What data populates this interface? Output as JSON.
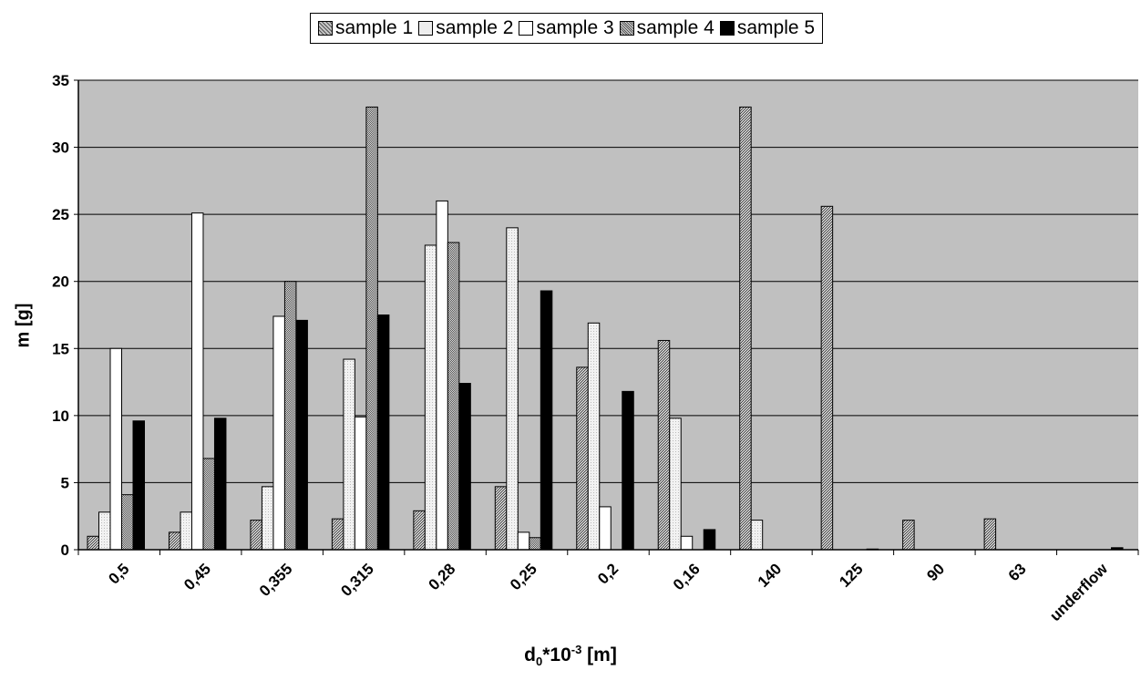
{
  "chart_data": {
    "type": "bar",
    "title": "",
    "xlabel_main": "d",
    "xlabel_sub": "0",
    "xlabel_mid": "*10",
    "xlabel_sup": "-3",
    "xlabel_end": " [m]",
    "ylabel": "m [g]",
    "ylim": [
      0,
      35
    ],
    "yticks": [
      0,
      5,
      10,
      15,
      20,
      25,
      30,
      35
    ],
    "grid": true,
    "legend_position": "top-center",
    "categories": [
      "0,5",
      "0,45",
      "0,355",
      "0,315",
      "0,28",
      "0,25",
      "0,2",
      "0,16",
      "140",
      "125",
      "90",
      "63",
      "underflow"
    ],
    "series": [
      {
        "name": "sample 1",
        "fill": "#888888",
        "values": [
          1.0,
          1.3,
          2.2,
          2.3,
          2.9,
          4.7,
          13.6,
          15.6,
          33.0,
          25.6,
          2.2,
          2.3,
          0
        ]
      },
      {
        "name": "sample 2",
        "fill": "#e6e6e6",
        "values": [
          2.8,
          2.8,
          4.7,
          14.2,
          22.7,
          24.0,
          16.9,
          9.8,
          2.2,
          0,
          0,
          0,
          0
        ]
      },
      {
        "name": "sample 3",
        "fill": "#ffffff",
        "values": [
          15.0,
          25.1,
          17.4,
          9.9,
          26.0,
          1.3,
          3.2,
          1.0,
          0,
          0,
          0,
          0,
          0
        ]
      },
      {
        "name": "sample 4",
        "fill": "#a6a6a6",
        "values": [
          4.1,
          6.8,
          20.0,
          33.0,
          22.9,
          0.9,
          0,
          0,
          0,
          0,
          0,
          0,
          0
        ]
      },
      {
        "name": "sample 5",
        "fill": "#111111",
        "values": [
          9.6,
          9.8,
          17.1,
          17.5,
          12.4,
          19.3,
          11.8,
          1.5,
          0,
          0.05,
          0,
          0,
          0.15
        ]
      }
    ]
  }
}
